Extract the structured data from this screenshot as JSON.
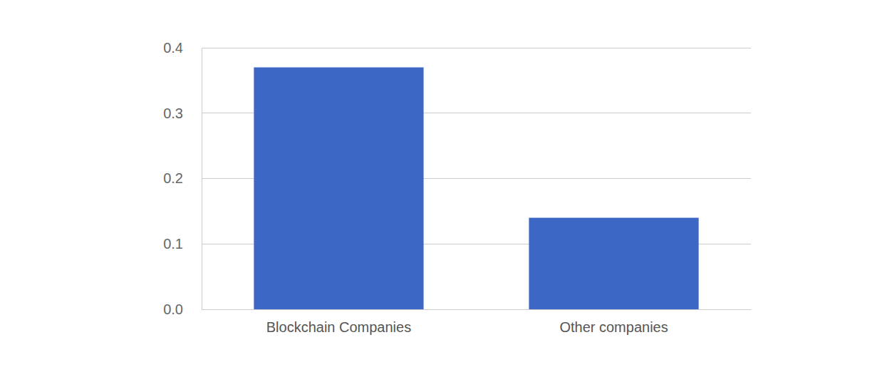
{
  "chart_data": {
    "type": "bar",
    "categories": [
      "Blockchain Companies",
      "Other companies"
    ],
    "values": [
      0.37,
      0.14
    ],
    "color": "#3d67c5",
    "ylim": [
      0,
      0.4
    ],
    "yticks": [
      {
        "value": 0,
        "label": "0.0"
      },
      0.1,
      0.2,
      0.3,
      0.4
    ],
    "grid": true
  }
}
